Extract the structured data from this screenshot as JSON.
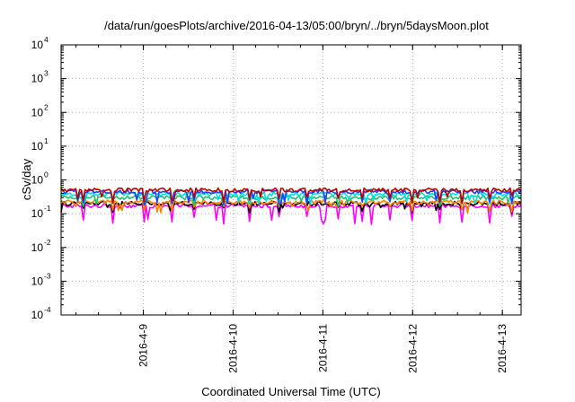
{
  "chart_data": {
    "type": "line",
    "title": "/data/run/goesPlots/archive/2016-04-13/05:00/bryn/../bryn/5daysMoon.plot",
    "xlabel": "Coordinated Universal Time (UTC)",
    "ylabel": "cSv/day",
    "x_range": [
      "2016-04-08 02:00",
      "2016-04-13 05:00"
    ],
    "x_ticks": [
      "2016-4-9",
      "2016-4-10",
      "2016-4-11",
      "2016-4-12",
      "2016-4-13"
    ],
    "y_scale": "log",
    "y_range": [
      0.0001,
      10000
    ],
    "y_ticks": [
      {
        "base": "10",
        "exp": "-4"
      },
      {
        "base": "10",
        "exp": "-3"
      },
      {
        "base": "10",
        "exp": "-2"
      },
      {
        "base": "10",
        "exp": "-1"
      },
      {
        "base": "10",
        "exp": "0"
      },
      {
        "base": "10",
        "exp": "1"
      },
      {
        "base": "10",
        "exp": "2"
      },
      {
        "base": "10",
        "exp": "3"
      },
      {
        "base": "10",
        "exp": "4"
      }
    ],
    "grid": true,
    "legend": "none",
    "series": [
      {
        "color": "#ff00ff",
        "approx_level": 0.17,
        "dip_level": 0.06
      },
      {
        "color": "#000000",
        "approx_level": 0.2,
        "dip_level": 0.12
      },
      {
        "color": "#ff8000",
        "approx_level": 0.22,
        "dip_level": 0.13
      },
      {
        "color": "#20c070",
        "approx_level": 0.3,
        "dip_level": 0.2
      },
      {
        "color": "#00e0e0",
        "approx_level": 0.38,
        "dip_level": 0.22
      },
      {
        "color": "#2040ff",
        "approx_level": 0.45,
        "dip_level": 0.22
      },
      {
        "color": "#c00000",
        "approx_level": 0.5,
        "dip_level": 0.25
      }
    ]
  }
}
